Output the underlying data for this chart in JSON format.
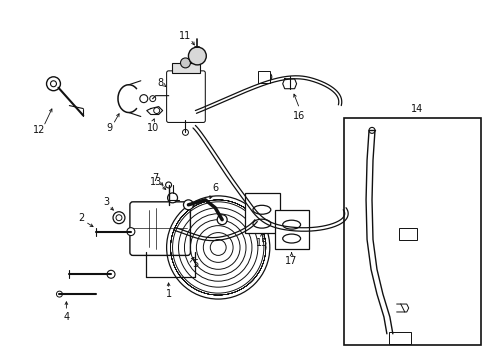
{
  "bg_color": "#ffffff",
  "line_color": "#111111",
  "fig_width": 4.9,
  "fig_height": 3.6,
  "dpi": 100,
  "label_fs": 7.0,
  "lw": 0.75
}
